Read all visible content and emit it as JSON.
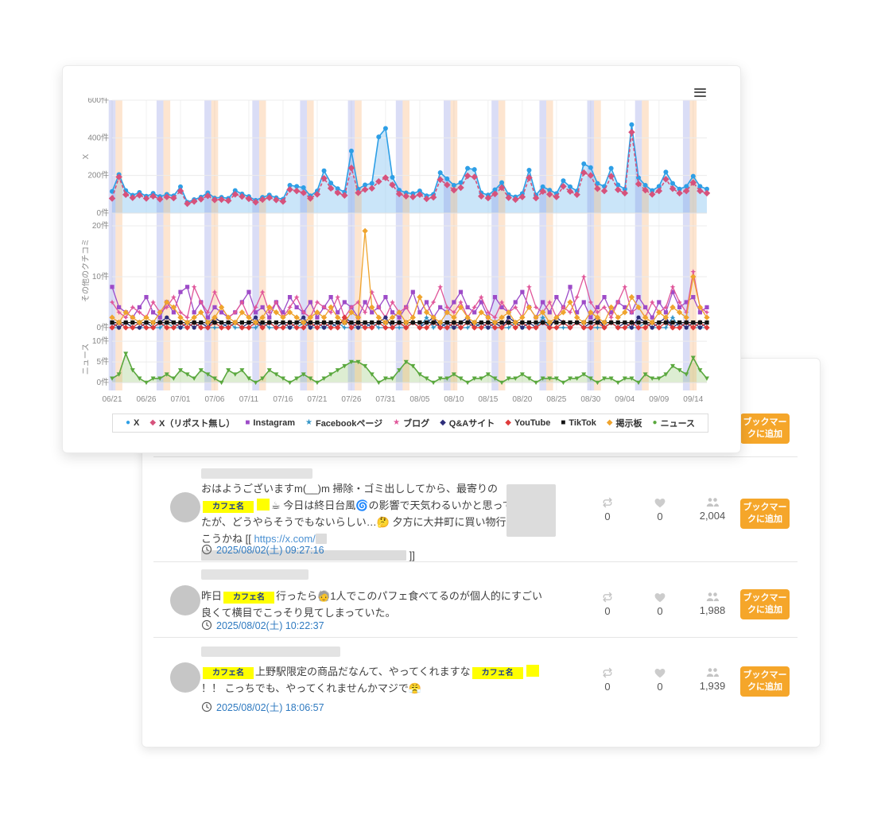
{
  "ui": {
    "bookmark_label": "ブックマークに追加",
    "icons": {
      "menu": "hamburger-icon",
      "timestamp": "clock-icon",
      "repost": "repost-arrows-icon",
      "like": "heart-icon",
      "followers": "people-group-icon"
    }
  },
  "chart_data": {
    "type": "line",
    "x_tick_labels": [
      "06/21",
      "06/26",
      "07/01",
      "07/06",
      "07/11",
      "07/16",
      "07/21",
      "07/26",
      "07/31",
      "08/05",
      "08/10",
      "08/15",
      "08/20",
      "08/25",
      "08/30",
      "09/04",
      "09/09",
      "09/14"
    ],
    "x_tick_interval_days": 5,
    "grid": true,
    "legend_position": "bottom",
    "weekend_colors": {
      "saturday": "rgba(132,142,224,0.30)",
      "sunday": "rgba(247,168,100,0.30)"
    },
    "panels": [
      {
        "title": "X",
        "vmin": 0,
        "vmax": 600,
        "ticks": [
          {
            "v": 0,
            "label": "0件"
          },
          {
            "v": 200,
            "label": "200件"
          },
          {
            "v": 400,
            "label": "400件"
          },
          {
            "v": 600,
            "label": "600件"
          }
        ]
      },
      {
        "title": "その他のクチコミ",
        "vmin": 0,
        "vmax": 22.5,
        "ticks": [
          {
            "v": 0,
            "label": "0件"
          },
          {
            "v": 10,
            "label": "10件"
          },
          {
            "v": 20,
            "label": "20件"
          }
        ]
      },
      {
        "title": "ニュース",
        "vmin": -1.9,
        "vmax": 13.3,
        "ticks": [
          {
            "v": 0,
            "label": "0件"
          },
          {
            "v": 5,
            "label": "5件"
          },
          {
            "v": 10,
            "label": "10件"
          }
        ]
      }
    ],
    "series": [
      {
        "name": "X",
        "panel": 0,
        "color": "#2e9fe6",
        "marker": "circle",
        "glyph": "●",
        "fill": "rgba(158,208,244,0.55)",
        "values": [
          115,
          205,
          120,
          95,
          110,
          90,
          105,
          88,
          100,
          92,
          140,
          58,
          72,
          85,
          108,
          80,
          84,
          78,
          120,
          102,
          88,
          68,
          84,
          96,
          82,
          74,
          148,
          142,
          135,
          92,
          118,
          225,
          160,
          130,
          112,
          330,
          128,
          150,
          158,
          405,
          450,
          190,
          122,
          108,
          104,
          118,
          92,
          100,
          215,
          182,
          148,
          162,
          238,
          232,
          108,
          96,
          124,
          162,
          98,
          86,
          104,
          228,
          96,
          140,
          122,
          104,
          172,
          140,
          118,
          262,
          242,
          158,
          142,
          238,
          150,
          128,
          470,
          188,
          148,
          120,
          142,
          218,
          158,
          128,
          142,
          196,
          142,
          128
        ]
      },
      {
        "name": "X（リポスト無し）",
        "panel": 0,
        "color": "#d6527c",
        "marker": "diamond",
        "glyph": "◆",
        "dash": true,
        "values": [
          78,
          192,
          98,
          82,
          95,
          78,
          90,
          74,
          86,
          80,
          118,
          50,
          62,
          74,
          92,
          70,
          72,
          66,
          100,
          88,
          76,
          58,
          72,
          82,
          70,
          62,
          125,
          118,
          108,
          78,
          100,
          185,
          132,
          108,
          94,
          240,
          108,
          125,
          132,
          168,
          188,
          150,
          102,
          90,
          86,
          98,
          76,
          84,
          178,
          150,
          122,
          135,
          198,
          192,
          90,
          80,
          102,
          135,
          82,
          72,
          86,
          188,
          80,
          115,
          100,
          86,
          142,
          115,
          98,
          215,
          200,
          130,
          118,
          196,
          124,
          106,
          430,
          155,
          122,
          100,
          118,
          180,
          130,
          106,
          118,
          162,
          118,
          106
        ]
      },
      {
        "name": "Instagram",
        "panel": 1,
        "color": "#9d4bc8",
        "marker": "square",
        "glyph": "■",
        "values": [
          8,
          4,
          3,
          2,
          4,
          6,
          3,
          2,
          5,
          3,
          7,
          8,
          3,
          5,
          2,
          4,
          3,
          2,
          3,
          5,
          7,
          3,
          4,
          2,
          5,
          3,
          6,
          4,
          3,
          5,
          2,
          4,
          6,
          3,
          5,
          4,
          2,
          5,
          3,
          4,
          6,
          3,
          2,
          4,
          7,
          3,
          5,
          2,
          4,
          3,
          5,
          7,
          4,
          3,
          5,
          2,
          6,
          4,
          3,
          5,
          7,
          4,
          2,
          5,
          3,
          6,
          4,
          8,
          3,
          5,
          2,
          4,
          6,
          3,
          5,
          4,
          3,
          6,
          4,
          2,
          5,
          3,
          7,
          4,
          5,
          6,
          3,
          4
        ]
      },
      {
        "name": "Facebookページ",
        "panel": 1,
        "color": "#3596c8",
        "marker": "star",
        "glyph": "★",
        "values": [
          0,
          0,
          1,
          0,
          0,
          0,
          0,
          0,
          1,
          0,
          0,
          0,
          1,
          0,
          0,
          0,
          0,
          1,
          0,
          0,
          0,
          0,
          1,
          0,
          0,
          0,
          0,
          0,
          1,
          0,
          0,
          0,
          0,
          1,
          0,
          0,
          0,
          0,
          1,
          0,
          0,
          0,
          0,
          0,
          1,
          0,
          2,
          0,
          1,
          0,
          0,
          0,
          0,
          1,
          0,
          0,
          0,
          0,
          0,
          1,
          0,
          0,
          0,
          2,
          0,
          0,
          0,
          0,
          1,
          0,
          0,
          0,
          0,
          1,
          0,
          0,
          0,
          0,
          1,
          0,
          0,
          0,
          2,
          0,
          1,
          0,
          0,
          0
        ]
      },
      {
        "name": "ブログ",
        "panel": 1,
        "color": "#e0569a",
        "marker": "star",
        "glyph": "★",
        "values": [
          5,
          3,
          2,
          4,
          3,
          2,
          5,
          3,
          4,
          6,
          3,
          2,
          8,
          5,
          3,
          7,
          4,
          2,
          3,
          5,
          2,
          4,
          7,
          3,
          5,
          2,
          4,
          6,
          3,
          2,
          5,
          4,
          3,
          6,
          2,
          4,
          5,
          3,
          7,
          4,
          2,
          5,
          3,
          4,
          2,
          6,
          3,
          5,
          8,
          4,
          3,
          5,
          2,
          4,
          6,
          3,
          2,
          5,
          3,
          4,
          2,
          8,
          4,
          3,
          5,
          2,
          4,
          3,
          6,
          10,
          5,
          3,
          4,
          2,
          5,
          8,
          3,
          4,
          2,
          5,
          3,
          4,
          8,
          5,
          3,
          11,
          4,
          3
        ]
      },
      {
        "name": "Q&Aサイト",
        "panel": 1,
        "color": "#2d2d7a",
        "marker": "circle",
        "glyph": "◆",
        "values": [
          1,
          0,
          1,
          0,
          0,
          1,
          0,
          1,
          2,
          1,
          0,
          1,
          0,
          1,
          0,
          2,
          1,
          0,
          1,
          0,
          1,
          2,
          0,
          1,
          0,
          1,
          0,
          1,
          2,
          0,
          1,
          0,
          1,
          0,
          2,
          1,
          0,
          1,
          0,
          1,
          2,
          0,
          1,
          0,
          1,
          0,
          1,
          2,
          0,
          1,
          0,
          1,
          2,
          0,
          1,
          0,
          1,
          0,
          2,
          1,
          0,
          1,
          0,
          1,
          0,
          2,
          1,
          0,
          1,
          0,
          1,
          2,
          0,
          1,
          0,
          1,
          0,
          2,
          1,
          0,
          1,
          2,
          0,
          1,
          0,
          1,
          0,
          1
        ]
      },
      {
        "name": "YouTube",
        "panel": 1,
        "color": "#df3b3b",
        "marker": "diamond",
        "glyph": "◆",
        "values": [
          0,
          1,
          0,
          0,
          1,
          0,
          0,
          1,
          0,
          0,
          1,
          0,
          1,
          0,
          0,
          1,
          0,
          0,
          1,
          0,
          0,
          1,
          0,
          1,
          0,
          0,
          1,
          0,
          0,
          1,
          0,
          1,
          0,
          0,
          2,
          0,
          1,
          0,
          0,
          1,
          0,
          0,
          1,
          0,
          1,
          0,
          0,
          1,
          0,
          0,
          1,
          0,
          1,
          0,
          0,
          1,
          0,
          0,
          1,
          0,
          1,
          0,
          0,
          1,
          0,
          0,
          1,
          0,
          1,
          0,
          0,
          1,
          0,
          1,
          0,
          0,
          1,
          0,
          0,
          1,
          0,
          1,
          0,
          0,
          1,
          0,
          1,
          0
        ]
      },
      {
        "name": "TikTok",
        "panel": 1,
        "color": "#141414",
        "marker": "square",
        "glyph": "■",
        "values": [
          1,
          1,
          1,
          1,
          1,
          1,
          1,
          1,
          1,
          1,
          1,
          1,
          1,
          1,
          1,
          1,
          1,
          1,
          1,
          1,
          1,
          1,
          1,
          1,
          1,
          1,
          1,
          1,
          1,
          1,
          1,
          1,
          1,
          1,
          1,
          1,
          1,
          1,
          1,
          1,
          1,
          1,
          1,
          1,
          1,
          1,
          1,
          1,
          1,
          1,
          1,
          1,
          1,
          1,
          1,
          1,
          1,
          1,
          1,
          1,
          1,
          1,
          1,
          1,
          1,
          1,
          1,
          1,
          1,
          1,
          1,
          1,
          1,
          1,
          1,
          1,
          1,
          1,
          1,
          1,
          1,
          1,
          1,
          1,
          1,
          1,
          1,
          1
        ]
      },
      {
        "name": "掲示板",
        "panel": 1,
        "color": "#efa42e",
        "marker": "diamond",
        "glyph": "◆",
        "values": [
          2,
          1,
          3,
          2,
          1,
          2,
          1,
          3,
          5,
          4,
          2,
          1,
          2,
          3,
          1,
          2,
          4,
          2,
          1,
          3,
          2,
          1,
          2,
          4,
          3,
          2,
          3,
          2,
          1,
          2,
          3,
          2,
          4,
          2,
          1,
          3,
          2,
          19,
          4,
          2,
          1,
          2,
          3,
          1,
          2,
          6,
          3,
          2,
          1,
          3,
          2,
          4,
          2,
          1,
          3,
          2,
          1,
          2,
          3,
          1,
          2,
          4,
          2,
          3,
          1,
          2,
          3,
          5,
          2,
          1,
          3,
          2,
          1,
          4,
          2,
          3,
          6,
          4,
          2,
          1,
          3,
          2,
          4,
          3,
          2,
          10,
          4,
          2
        ]
      },
      {
        "name": "ニュース",
        "panel": 2,
        "color": "#5aa83e",
        "marker": "triangle",
        "glyph": "●",
        "fill": "rgba(142,196,106,0.30)",
        "values": [
          1,
          2,
          7,
          3,
          1,
          0,
          1,
          1,
          2,
          1,
          3,
          2,
          1,
          3,
          2,
          1,
          0,
          3,
          2,
          3,
          1,
          0,
          1,
          3,
          2,
          1,
          0,
          1,
          2,
          1,
          0,
          1,
          2,
          3,
          4,
          5,
          5,
          4,
          2,
          0,
          1,
          1,
          3,
          5,
          4,
          2,
          1,
          0,
          1,
          1,
          2,
          1,
          0,
          1,
          1,
          2,
          1,
          0,
          1,
          1,
          2,
          1,
          0,
          1,
          1,
          1,
          0,
          1,
          1,
          2,
          1,
          0,
          1,
          1,
          0,
          1,
          1,
          0,
          2,
          1,
          1,
          2,
          4,
          3,
          2,
          6,
          3,
          1
        ]
      }
    ]
  },
  "posts_card": {
    "has_partial_post_above": true,
    "posts": [
      {
        "segments": [
          {
            "t": "text",
            "v": "おはようございますm(__)m 掃除・ゴミ出ししてから、最寄りの"
          },
          {
            "t": "hl",
            "v": "カフェ名"
          },
          {
            "t": "hl-blank"
          },
          {
            "t": "text",
            "v": "☕ 今日は終日台風🌀の影響で天気わるいかと思ってたが、どうやらそうでもないらしい…🤔 夕方に大井町に買い物行こうかね [[ "
          },
          {
            "t": "link",
            "v": "https://x.com/"
          },
          {
            "t": "redact",
            "w": "sm"
          },
          {
            "t": "redact",
            "w": "lg"
          },
          {
            "t": "text",
            "v": " ]]"
          }
        ],
        "timestamp": "2025/08/02(土) 09:27:16",
        "repost_count": "0",
        "like_count": "0",
        "follower_count": "2,004",
        "has_image": true
      },
      {
        "segments": [
          {
            "t": "text",
            "v": "昨日"
          },
          {
            "t": "hl",
            "v": "カフェ名"
          },
          {
            "t": "text",
            "v": "行ったら🧓1人でこのパフェ食べてるのが個人的にすごい良くて横目でこっそり見てしまっていた。"
          }
        ],
        "timestamp": "2025/08/02(土) 10:22:37",
        "repost_count": "0",
        "like_count": "0",
        "follower_count": "1,988",
        "has_image": false
      },
      {
        "segments": [
          {
            "t": "hl",
            "v": "カフェ名"
          },
          {
            "t": "text",
            "v": "上野駅限定の商品だなんて、やってくれますな"
          },
          {
            "t": "hl",
            "v": "カフェ名"
          },
          {
            "t": "hl-blank"
          },
          {
            "t": "text",
            "v": "！！ こっちでも、やってくれませんかマジで😤"
          }
        ],
        "timestamp": "2025/08/02(土) 18:06:57",
        "repost_count": "0",
        "like_count": "0",
        "follower_count": "1,939",
        "has_image": false
      }
    ]
  }
}
